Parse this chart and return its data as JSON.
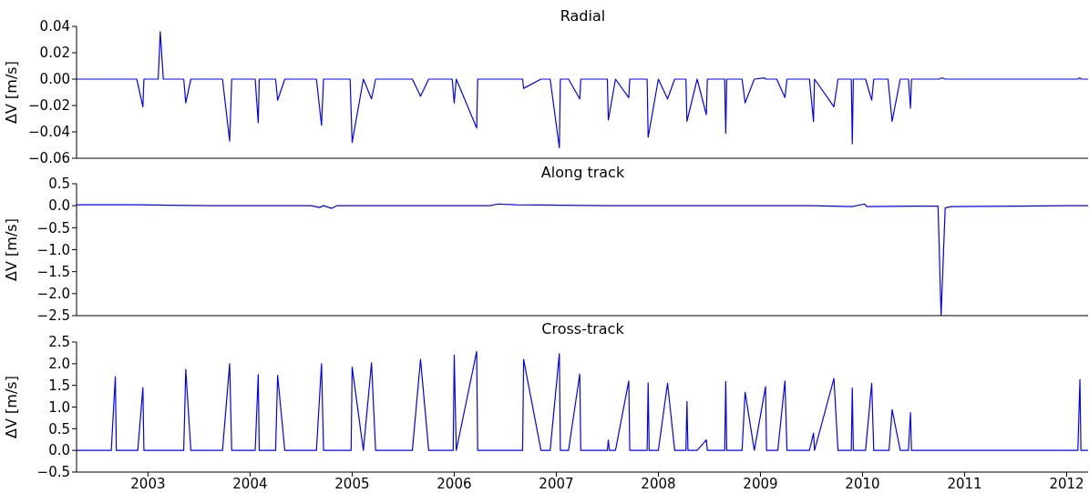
{
  "chart_data": [
    {
      "type": "line",
      "title": "Radial",
      "ylabel": "ΔV [m/s]",
      "color": "#0000ff",
      "tick_labels": "y",
      "xlim": [
        2002.3,
        2012.21
      ],
      "xticks": [
        2003,
        2004,
        2005,
        2006,
        2007,
        2008,
        2009,
        2010,
        2011,
        2012
      ],
      "ylim": [
        -0.06,
        0.04
      ],
      "yticks": [
        {
          "value": -0.06,
          "label": "−0.06"
        },
        {
          "value": -0.04,
          "label": "−0.04"
        },
        {
          "value": -0.02,
          "label": "−0.02"
        },
        {
          "value": 0,
          "label": "0.00"
        },
        {
          "value": 0.02,
          "label": "0.02"
        },
        {
          "value": 0.04,
          "label": "0.04"
        }
      ],
      "x": [
        2002.3,
        2002.89,
        2002.95,
        2002.96,
        2003.1,
        2003.12,
        2003.15,
        2003.35,
        2003.37,
        2003.42,
        2003.73,
        2003.8,
        2003.82,
        2004.05,
        2004.08,
        2004.09,
        2004.25,
        2004.27,
        2004.34,
        2004.65,
        2004.7,
        2004.72,
        2004.98,
        2005.0,
        2005.11,
        2005.19,
        2005.23,
        2005.59,
        2005.67,
        2005.75,
        2005.98,
        2006.0,
        2006.02,
        2006.22,
        2006.23,
        2006.67,
        2006.68,
        2006.85,
        2006.94,
        2007.03,
        2007.04,
        2007.12,
        2007.23,
        2007.24,
        2007.5,
        2007.51,
        2007.58,
        2007.71,
        2007.72,
        2007.89,
        2007.9,
        2008.0,
        2008.09,
        2008.16,
        2008.27,
        2008.28,
        2008.38,
        2008.47,
        2008.48,
        2008.65,
        2008.66,
        2008.67,
        2008.82,
        2008.85,
        2008.94,
        2009.04,
        2009.05,
        2009.16,
        2009.24,
        2009.26,
        2009.48,
        2009.52,
        2009.53,
        2009.72,
        2009.76,
        2009.89,
        2009.9,
        2009.91,
        2010.03,
        2010.09,
        2010.11,
        2010.25,
        2010.29,
        2010.37,
        2010.45,
        2010.47,
        2010.48,
        2010.75,
        2010.78,
        2010.81,
        2012.11,
        2012.13,
        2012.14,
        2012.21
      ],
      "values": [
        0,
        0,
        -0.021,
        0,
        0,
        0.036,
        0,
        0,
        -0.018,
        0,
        0,
        -0.047,
        0,
        0,
        -0.033,
        0,
        0,
        -0.016,
        0,
        0,
        -0.035,
        0,
        0,
        -0.048,
        0,
        -0.015,
        0,
        0,
        -0.013,
        0,
        0,
        -0.018,
        0,
        -0.037,
        0,
        0,
        -0.007,
        0,
        0,
        -0.052,
        0,
        0,
        -0.015,
        0,
        0,
        -0.031,
        0,
        -0.014,
        0,
        0,
        -0.044,
        0,
        -0.015,
        0,
        0,
        -0.032,
        0,
        -0.027,
        0,
        0,
        -0.041,
        0,
        0,
        -0.018,
        0,
        0.001,
        0,
        0,
        -0.014,
        0,
        0,
        -0.032,
        0,
        -0.021,
        0,
        0,
        -0.049,
        0,
        0,
        -0.016,
        0,
        0,
        -0.032,
        0,
        0,
        -0.022,
        0,
        0,
        0.001,
        0,
        0,
        0.001,
        0,
        0
      ]
    },
    {
      "type": "line",
      "title": "Along track",
      "ylabel": "ΔV [m/s]",
      "color": "#0000ff",
      "tick_labels": "y",
      "xlim": [
        2002.3,
        2012.21
      ],
      "xticks": [
        2003,
        2004,
        2005,
        2006,
        2007,
        2008,
        2009,
        2010,
        2011,
        2012
      ],
      "ylim": [
        -2.5,
        0.5
      ],
      "yticks": [
        {
          "value": -2.5,
          "label": "−2.5"
        },
        {
          "value": -2,
          "label": "−2.0"
        },
        {
          "value": -1.5,
          "label": "−1.5"
        },
        {
          "value": -1,
          "label": "−1.0"
        },
        {
          "value": -0.5,
          "label": "−0.5"
        },
        {
          "value": 0,
          "label": "0.0"
        },
        {
          "value": 0.5,
          "label": "0.5"
        }
      ],
      "x": [
        2002.3,
        2002.9,
        2003.2,
        2003.6,
        2004.0,
        2004.6,
        2004.68,
        2004.72,
        2004.8,
        2004.85,
        2005.5,
        2006.35,
        2006.43,
        2006.6,
        2007.5,
        2008.5,
        2009.5,
        2009.9,
        2010.02,
        2010.04,
        2010.5,
        2010.74,
        2010.77,
        2010.81,
        2010.87,
        2011.5,
        2012.0,
        2012.21
      ],
      "values": [
        0.02,
        0.02,
        0.01,
        0,
        0,
        0,
        -0.04,
        0,
        -0.06,
        0,
        0,
        0,
        0.04,
        0.02,
        0,
        0,
        0,
        -0.02,
        0.04,
        -0.02,
        -0.01,
        -0.01,
        -2.5,
        -0.05,
        -0.02,
        -0.01,
        0,
        0
      ]
    },
    {
      "type": "line",
      "title": "Cross-track",
      "ylabel": "ΔV [m/s]",
      "color": "#0000ff",
      "xlim": [
        2002.3,
        2012.21
      ],
      "xticks": [
        2003,
        2004,
        2005,
        2006,
        2007,
        2008,
        2009,
        2010,
        2011,
        2012
      ],
      "ylim": [
        -0.5,
        2.5
      ],
      "yticks": [
        {
          "value": -0.5,
          "label": "−0.5"
        },
        {
          "value": 0,
          "label": "0.0"
        },
        {
          "value": 0.5,
          "label": "0.5"
        },
        {
          "value": 1,
          "label": "1.0"
        },
        {
          "value": 1.5,
          "label": "1.5"
        },
        {
          "value": 2,
          "label": "2.0"
        },
        {
          "value": 2.5,
          "label": "2.5"
        }
      ],
      "x": [
        2002.3,
        2002.64,
        2002.68,
        2002.69,
        2002.9,
        2002.95,
        2002.96,
        2003.35,
        2003.37,
        2003.42,
        2003.73,
        2003.8,
        2003.82,
        2004.05,
        2004.08,
        2004.09,
        2004.25,
        2004.27,
        2004.34,
        2004.65,
        2004.7,
        2004.72,
        2004.99,
        2005.0,
        2005.11,
        2005.19,
        2005.23,
        2005.59,
        2005.67,
        2005.75,
        2005.99,
        2006.0,
        2006.02,
        2006.22,
        2006.23,
        2006.67,
        2006.68,
        2006.85,
        2006.94,
        2007.03,
        2007.04,
        2007.12,
        2007.23,
        2007.24,
        2007.5,
        2007.51,
        2007.52,
        2007.58,
        2007.71,
        2007.72,
        2007.89,
        2007.9,
        2007.91,
        2008.0,
        2008.09,
        2008.16,
        2008.27,
        2008.28,
        2008.29,
        2008.38,
        2008.47,
        2008.48,
        2008.65,
        2008.66,
        2008.67,
        2008.82,
        2008.85,
        2008.94,
        2009.05,
        2009.06,
        2009.17,
        2009.24,
        2009.26,
        2009.48,
        2009.52,
        2009.53,
        2009.72,
        2009.76,
        2009.89,
        2009.9,
        2009.91,
        2010.03,
        2010.09,
        2010.11,
        2010.26,
        2010.29,
        2010.37,
        2010.45,
        2010.47,
        2010.48,
        2012.11,
        2012.13,
        2012.14,
        2012.21
      ],
      "values": [
        0,
        0,
        1.7,
        0,
        0,
        1.45,
        0,
        0,
        1.87,
        0,
        0,
        2.0,
        0,
        0,
        1.75,
        0,
        0,
        1.73,
        0,
        0,
        2.0,
        0,
        0,
        1.92,
        0,
        2.02,
        0,
        0,
        2.1,
        0,
        0,
        2.2,
        0,
        2.28,
        0,
        0,
        2.1,
        0,
        0,
        2.23,
        0,
        0,
        1.76,
        0,
        0,
        0.24,
        0,
        0,
        1.6,
        0,
        0,
        1.56,
        0,
        0,
        1.55,
        0,
        0,
        1.13,
        0,
        0,
        0.24,
        0,
        0,
        1.59,
        0,
        0,
        1.34,
        0,
        1.47,
        0,
        0,
        1.6,
        0,
        0,
        0.4,
        0,
        1.66,
        0,
        0,
        1.44,
        0,
        0,
        1.55,
        0,
        0,
        0.94,
        0,
        0,
        0.87,
        0,
        0,
        1.63,
        0,
        0
      ]
    }
  ]
}
